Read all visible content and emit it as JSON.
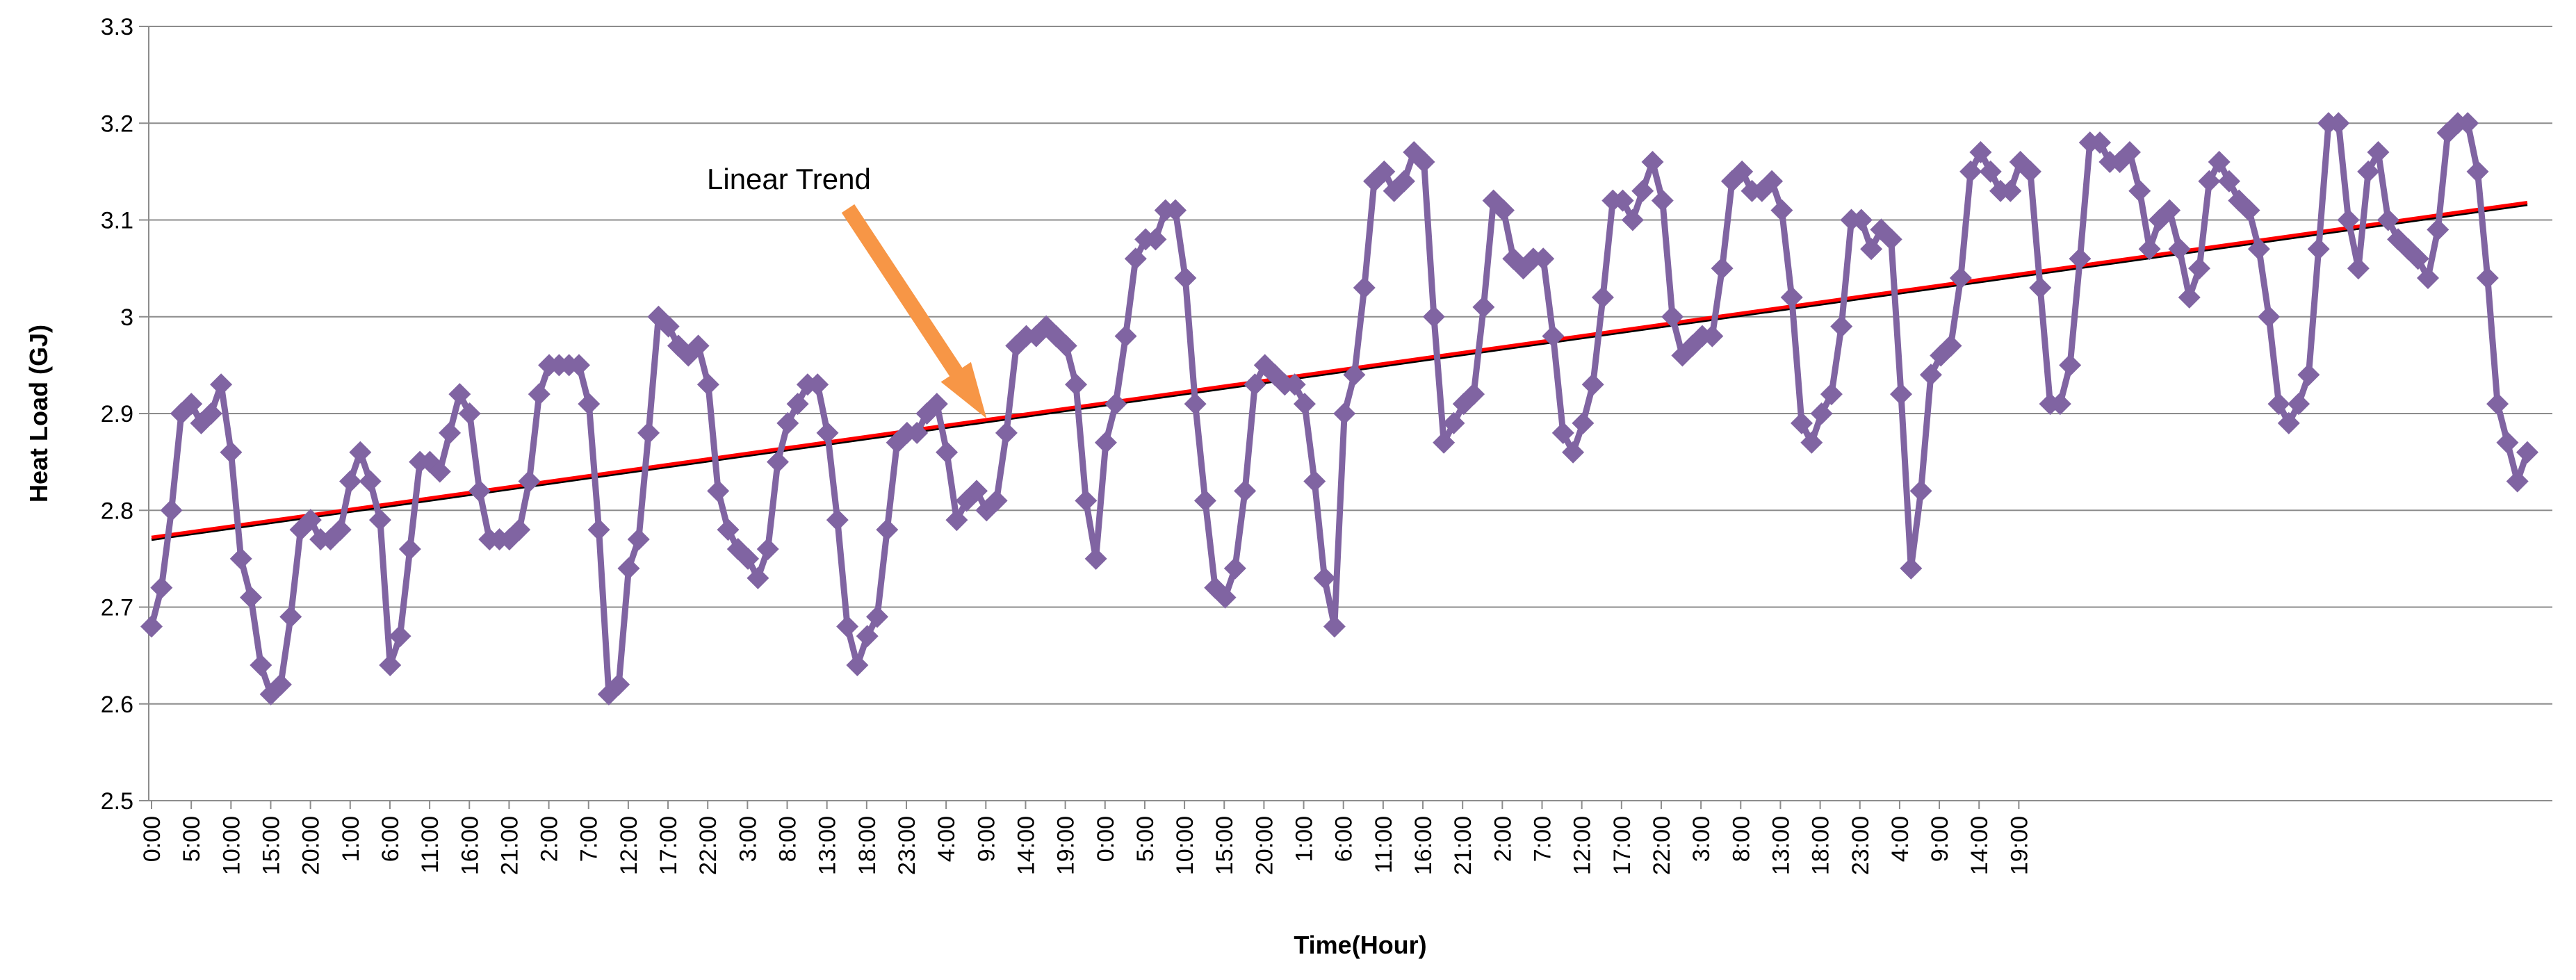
{
  "chart_data": {
    "type": "line",
    "title": "",
    "xlabel": "Time(Hour)",
    "ylabel": "Heat Load (GJ)",
    "ylim": [
      2.5,
      3.3
    ],
    "yticks": [
      2.5,
      2.6,
      2.7,
      2.8,
      2.9,
      3,
      3.1,
      3.2,
      3.3
    ],
    "ytick_labels": [
      "2.5",
      "2.6",
      "2.7",
      "2.8",
      "2.9",
      "3",
      "3.1",
      "3.2",
      "3.3"
    ],
    "grid": true,
    "legend": "none",
    "x_count": 300,
    "xtick_labels": [
      "0:00",
      "5:00",
      "10:00",
      "15:00",
      "20:00",
      "1:00",
      "6:00",
      "11:00",
      "16:00",
      "21:00",
      "2:00",
      "7:00",
      "12:00",
      "17:00",
      "22:00",
      "3:00",
      "8:00",
      "13:00",
      "18:00",
      "23:00",
      "4:00",
      "9:00",
      "14:00",
      "19:00",
      "0:00",
      "5:00",
      "10:00",
      "15:00",
      "20:00",
      "1:00",
      "6:00",
      "11:00",
      "16:00",
      "21:00",
      "2:00",
      "7:00",
      "12:00",
      "17:00",
      "22:00",
      "3:00",
      "8:00",
      "13:00",
      "18:00",
      "23:00",
      "4:00",
      "9:00",
      "14:00",
      "19:00"
    ],
    "xtick_step": 5,
    "series": [
      {
        "name": "Heat Load",
        "color": "#8064a2",
        "marker": "diamond",
        "anchors": [
          [
            0,
            2.68
          ],
          [
            1,
            2.72
          ],
          [
            2,
            2.8
          ],
          [
            3,
            2.9
          ],
          [
            4,
            2.91
          ],
          [
            5,
            2.89
          ],
          [
            6,
            2.9
          ],
          [
            7,
            2.93
          ],
          [
            8,
            2.86
          ],
          [
            9,
            2.75
          ],
          [
            10,
            2.71
          ],
          [
            11,
            2.64
          ],
          [
            12,
            2.61
          ],
          [
            13,
            2.62
          ],
          [
            14,
            2.69
          ],
          [
            15,
            2.78
          ],
          [
            16,
            2.79
          ],
          [
            17,
            2.77
          ],
          [
            18,
            2.77
          ],
          [
            19,
            2.78
          ],
          [
            20,
            2.83
          ],
          [
            21,
            2.86
          ],
          [
            22,
            2.83
          ],
          [
            23,
            2.79
          ],
          [
            24,
            2.64
          ],
          [
            25,
            2.67
          ],
          [
            26,
            2.76
          ],
          [
            27,
            2.85
          ],
          [
            28,
            2.85
          ],
          [
            29,
            2.84
          ],
          [
            30,
            2.88
          ],
          [
            31,
            2.92
          ],
          [
            32,
            2.9
          ],
          [
            33,
            2.82
          ],
          [
            34,
            2.77
          ],
          [
            35,
            2.77
          ],
          [
            36,
            2.77
          ],
          [
            37,
            2.78
          ],
          [
            38,
            2.83
          ],
          [
            39,
            2.92
          ],
          [
            40,
            2.95
          ],
          [
            41,
            2.95
          ],
          [
            42,
            2.95
          ],
          [
            43,
            2.95
          ],
          [
            44,
            2.91
          ],
          [
            45,
            2.78
          ],
          [
            46,
            2.61
          ],
          [
            47,
            2.62
          ],
          [
            48,
            2.74
          ],
          [
            49,
            2.77
          ],
          [
            50,
            2.88
          ],
          [
            51,
            3.0
          ],
          [
            52,
            2.99
          ],
          [
            53,
            2.97
          ],
          [
            54,
            2.96
          ],
          [
            55,
            2.97
          ],
          [
            56,
            2.93
          ],
          [
            57,
            2.82
          ],
          [
            58,
            2.78
          ],
          [
            59,
            2.76
          ],
          [
            60,
            2.75
          ],
          [
            61,
            2.73
          ],
          [
            62,
            2.76
          ],
          [
            63,
            2.85
          ],
          [
            64,
            2.89
          ],
          [
            65,
            2.91
          ],
          [
            66,
            2.93
          ],
          [
            67,
            2.93
          ],
          [
            68,
            2.88
          ],
          [
            69,
            2.79
          ],
          [
            70,
            2.68
          ],
          [
            71,
            2.64
          ],
          [
            72,
            2.67
          ],
          [
            73,
            2.69
          ],
          [
            74,
            2.78
          ],
          [
            75,
            2.87
          ],
          [
            76,
            2.88
          ],
          [
            77,
            2.88
          ],
          [
            78,
            2.9
          ],
          [
            79,
            2.91
          ],
          [
            80,
            2.86
          ],
          [
            81,
            2.79
          ],
          [
            82,
            2.81
          ],
          [
            83,
            2.82
          ],
          [
            84,
            2.8
          ],
          [
            85,
            2.81
          ],
          [
            86,
            2.88
          ],
          [
            87,
            2.97
          ],
          [
            88,
            2.98
          ],
          [
            89,
            2.98
          ],
          [
            90,
            2.99
          ],
          [
            91,
            2.98
          ],
          [
            92,
            2.97
          ],
          [
            93,
            2.93
          ],
          [
            94,
            2.81
          ],
          [
            95,
            2.75
          ],
          [
            96,
            2.87
          ],
          [
            97,
            2.91
          ],
          [
            98,
            2.98
          ],
          [
            99,
            3.06
          ],
          [
            100,
            3.08
          ],
          [
            101,
            3.08
          ],
          [
            102,
            3.11
          ],
          [
            103,
            3.11
          ],
          [
            104,
            3.04
          ],
          [
            105,
            2.91
          ],
          [
            106,
            2.81
          ],
          [
            107,
            2.72
          ],
          [
            108,
            2.71
          ],
          [
            109,
            2.74
          ],
          [
            110,
            2.82
          ],
          [
            111,
            2.93
          ],
          [
            112,
            2.95
          ],
          [
            113,
            2.94
          ],
          [
            114,
            2.93
          ],
          [
            115,
            2.93
          ],
          [
            116,
            2.91
          ],
          [
            117,
            2.83
          ],
          [
            118,
            2.73
          ],
          [
            119,
            2.68
          ],
          [
            120,
            2.9
          ],
          [
            121,
            2.94
          ],
          [
            122,
            3.03
          ],
          [
            123,
            3.14
          ],
          [
            124,
            3.15
          ],
          [
            125,
            3.13
          ],
          [
            126,
            3.14
          ],
          [
            127,
            3.17
          ],
          [
            128,
            3.16
          ],
          [
            129,
            3.0
          ],
          [
            130,
            2.87
          ],
          [
            131,
            2.89
          ],
          [
            132,
            2.91
          ],
          [
            133,
            2.92
          ],
          [
            134,
            3.01
          ],
          [
            135,
            3.12
          ],
          [
            136,
            3.11
          ],
          [
            137,
            3.06
          ],
          [
            138,
            3.05
          ],
          [
            139,
            3.06
          ],
          [
            140,
            3.06
          ],
          [
            141,
            2.98
          ],
          [
            142,
            2.88
          ],
          [
            143,
            2.86
          ],
          [
            144,
            2.89
          ],
          [
            145,
            2.93
          ],
          [
            146,
            3.02
          ],
          [
            147,
            3.12
          ],
          [
            148,
            3.12
          ],
          [
            149,
            3.1
          ],
          [
            150,
            3.13
          ],
          [
            151,
            3.16
          ],
          [
            152,
            3.12
          ],
          [
            153,
            3.0
          ],
          [
            154,
            2.96
          ],
          [
            155,
            2.97
          ],
          [
            156,
            2.98
          ],
          [
            157,
            2.98
          ],
          [
            158,
            3.05
          ],
          [
            159,
            3.14
          ],
          [
            160,
            3.15
          ],
          [
            161,
            3.13
          ],
          [
            162,
            3.13
          ],
          [
            163,
            3.14
          ],
          [
            164,
            3.11
          ],
          [
            165,
            3.02
          ],
          [
            166,
            2.89
          ],
          [
            167,
            2.87
          ],
          [
            168,
            2.9
          ],
          [
            169,
            2.92
          ],
          [
            170,
            2.99
          ],
          [
            171,
            3.1
          ],
          [
            172,
            3.1
          ],
          [
            173,
            3.07
          ],
          [
            174,
            3.09
          ],
          [
            175,
            3.08
          ],
          [
            176,
            2.92
          ],
          [
            177,
            2.74
          ],
          [
            178,
            2.82
          ],
          [
            179,
            2.94
          ],
          [
            180,
            2.96
          ],
          [
            181,
            2.97
          ],
          [
            182,
            3.04
          ],
          [
            183,
            3.15
          ],
          [
            184,
            3.17
          ],
          [
            185,
            3.15
          ],
          [
            186,
            3.13
          ],
          [
            187,
            3.13
          ],
          [
            188,
            3.16
          ],
          [
            189,
            3.15
          ],
          [
            190,
            3.03
          ],
          [
            191,
            2.91
          ],
          [
            192,
            2.91
          ],
          [
            193,
            2.95
          ],
          [
            194,
            3.06
          ],
          [
            195,
            3.18
          ],
          [
            196,
            3.18
          ],
          [
            197,
            3.16
          ],
          [
            198,
            3.16
          ],
          [
            199,
            3.17
          ],
          [
            200,
            3.13
          ],
          [
            201,
            3.07
          ],
          [
            202,
            3.1
          ],
          [
            203,
            3.11
          ],
          [
            204,
            3.07
          ],
          [
            205,
            3.02
          ],
          [
            206,
            3.05
          ],
          [
            207,
            3.14
          ],
          [
            208,
            3.16
          ],
          [
            209,
            3.14
          ],
          [
            210,
            3.12
          ],
          [
            211,
            3.11
          ],
          [
            212,
            3.07
          ],
          [
            213,
            3.0
          ],
          [
            214,
            2.91
          ],
          [
            215,
            2.89
          ],
          [
            216,
            2.91
          ],
          [
            217,
            2.94
          ],
          [
            218,
            3.07
          ],
          [
            219,
            3.2
          ],
          [
            220,
            3.2
          ],
          [
            221,
            3.1
          ],
          [
            222,
            3.05
          ],
          [
            223,
            3.15
          ],
          [
            224,
            3.17
          ],
          [
            225,
            3.1
          ],
          [
            226,
            3.08
          ],
          [
            227,
            3.07
          ],
          [
            228,
            3.06
          ],
          [
            229,
            3.04
          ],
          [
            230,
            3.09
          ],
          [
            231,
            3.19
          ],
          [
            232,
            3.2
          ],
          [
            233,
            3.2
          ],
          [
            234,
            3.15
          ],
          [
            235,
            3.04
          ],
          [
            236,
            2.91
          ],
          [
            237,
            2.87
          ],
          [
            238,
            2.83
          ],
          [
            239,
            2.86
          ]
        ]
      },
      {
        "name": "Linear Trend",
        "color": "#ff0000",
        "type": "linear",
        "start": [
          0,
          2.772
        ],
        "end": [
          239,
          3.118
        ]
      }
    ],
    "annotations": [
      {
        "text": "Linear Trend",
        "arrow_to": [
          84,
          2.895
        ],
        "color": "#f79646"
      }
    ]
  }
}
